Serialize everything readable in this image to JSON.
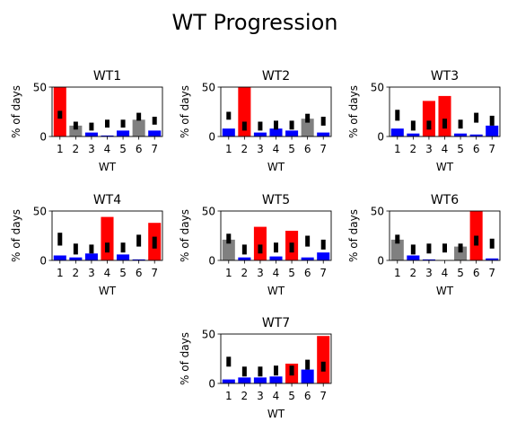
{
  "figure": {
    "suptitle": "WT Progression"
  },
  "colors": {
    "red": "#ff0000",
    "blue": "#0000ff",
    "gray": "#808080",
    "marker": "#000000"
  },
  "chart_data": [
    {
      "type": "bar",
      "title": "WT1",
      "xlabel": "WT",
      "ylabel": "% of days",
      "ylim": [
        0,
        50
      ],
      "yticks": [
        0,
        50
      ],
      "categories": [
        "1",
        "2",
        "3",
        "4",
        "5",
        "6",
        "7"
      ],
      "values": [
        50,
        11,
        4,
        1,
        6,
        17,
        6
      ],
      "bar_colors": [
        "red",
        "gray",
        "blue",
        "blue",
        "blue",
        "gray",
        "blue"
      ],
      "markers": [
        [
          18,
          26
        ],
        [
          7,
          15
        ],
        [
          6,
          14
        ],
        [
          9,
          17
        ],
        [
          9,
          17
        ],
        [
          16,
          24
        ],
        [
          12,
          20
        ]
      ]
    },
    {
      "type": "bar",
      "title": "WT2",
      "xlabel": "WT",
      "ylabel": "% of days",
      "ylim": [
        0,
        50
      ],
      "yticks": [
        0,
        50
      ],
      "categories": [
        "1",
        "2",
        "3",
        "4",
        "5",
        "6",
        "7"
      ],
      "values": [
        8,
        50,
        4,
        8,
        6,
        18,
        4
      ],
      "bar_colors": [
        "blue",
        "red",
        "blue",
        "blue",
        "blue",
        "gray",
        "blue"
      ],
      "markers": [
        [
          17,
          25
        ],
        [
          6,
          15
        ],
        [
          6,
          15
        ],
        [
          7,
          16
        ],
        [
          7,
          16
        ],
        [
          14,
          23
        ],
        [
          11,
          20
        ]
      ]
    },
    {
      "type": "bar",
      "title": "WT3",
      "xlabel": "WT",
      "ylabel": "% of days",
      "ylim": [
        0,
        50
      ],
      "yticks": [
        0,
        50
      ],
      "categories": [
        "1",
        "2",
        "3",
        "4",
        "5",
        "6",
        "7"
      ],
      "values": [
        8,
        3,
        36,
        41,
        3,
        2,
        11
      ],
      "bar_colors": [
        "blue",
        "blue",
        "red",
        "red",
        "blue",
        "blue",
        "blue"
      ],
      "markers": [
        [
          16,
          27
        ],
        [
          6,
          16
        ],
        [
          7,
          16
        ],
        [
          8,
          18
        ],
        [
          8,
          17
        ],
        [
          14,
          24
        ],
        [
          11,
          21
        ]
      ]
    },
    {
      "type": "bar",
      "title": "WT4",
      "xlabel": "WT",
      "ylabel": "% of days",
      "ylim": [
        0,
        50
      ],
      "yticks": [
        0,
        50
      ],
      "categories": [
        "1",
        "2",
        "3",
        "4",
        "5",
        "6",
        "7"
      ],
      "values": [
        5,
        3,
        7,
        44,
        6,
        1,
        38
      ],
      "bar_colors": [
        "blue",
        "blue",
        "blue",
        "red",
        "blue",
        "blue",
        "red"
      ],
      "markers": [
        [
          15,
          28
        ],
        [
          6,
          17
        ],
        [
          7,
          16
        ],
        [
          8,
          18
        ],
        [
          8,
          18
        ],
        [
          14,
          26
        ],
        [
          12,
          24
        ]
      ]
    },
    {
      "type": "bar",
      "title": "WT5",
      "xlabel": "WT",
      "ylabel": "% of days",
      "ylim": [
        0,
        50
      ],
      "yticks": [
        0,
        50
      ],
      "categories": [
        "1",
        "2",
        "3",
        "4",
        "5",
        "6",
        "7"
      ],
      "values": [
        21,
        3,
        34,
        4,
        30,
        3,
        8
      ],
      "bar_colors": [
        "gray",
        "blue",
        "red",
        "blue",
        "red",
        "blue",
        "blue"
      ],
      "markers": [
        [
          17,
          27
        ],
        [
          6,
          16
        ],
        [
          7,
          16
        ],
        [
          8,
          18
        ],
        [
          8,
          18
        ],
        [
          14,
          25
        ],
        [
          11,
          21
        ]
      ]
    },
    {
      "type": "bar",
      "title": "WT6",
      "xlabel": "WT",
      "ylabel": "% of days",
      "ylim": [
        0,
        50
      ],
      "yticks": [
        0,
        50
      ],
      "categories": [
        "1",
        "2",
        "3",
        "4",
        "5",
        "6",
        "7"
      ],
      "values": [
        21,
        5,
        1,
        0,
        14,
        50,
        2
      ],
      "bar_colors": [
        "gray",
        "blue",
        "blue",
        "blue",
        "gray",
        "red",
        "blue"
      ],
      "markers": [
        [
          17,
          26
        ],
        [
          6,
          16
        ],
        [
          7,
          17
        ],
        [
          8,
          17
        ],
        [
          8,
          17
        ],
        [
          15,
          25
        ],
        [
          12,
          22
        ]
      ]
    },
    {
      "type": "bar",
      "title": "WT7",
      "xlabel": "WT",
      "ylabel": "% of days",
      "ylim": [
        0,
        50
      ],
      "yticks": [
        0,
        50
      ],
      "categories": [
        "1",
        "2",
        "3",
        "4",
        "5",
        "6",
        "7"
      ],
      "values": [
        4,
        6,
        6,
        7,
        20,
        14,
        48
      ],
      "bar_colors": [
        "blue",
        "blue",
        "blue",
        "blue",
        "red",
        "blue",
        "red"
      ],
      "markers": [
        [
          17,
          27
        ],
        [
          7,
          17
        ],
        [
          7,
          17
        ],
        [
          8,
          18
        ],
        [
          8,
          18
        ],
        [
          14,
          24
        ],
        [
          12,
          22
        ]
      ]
    }
  ]
}
